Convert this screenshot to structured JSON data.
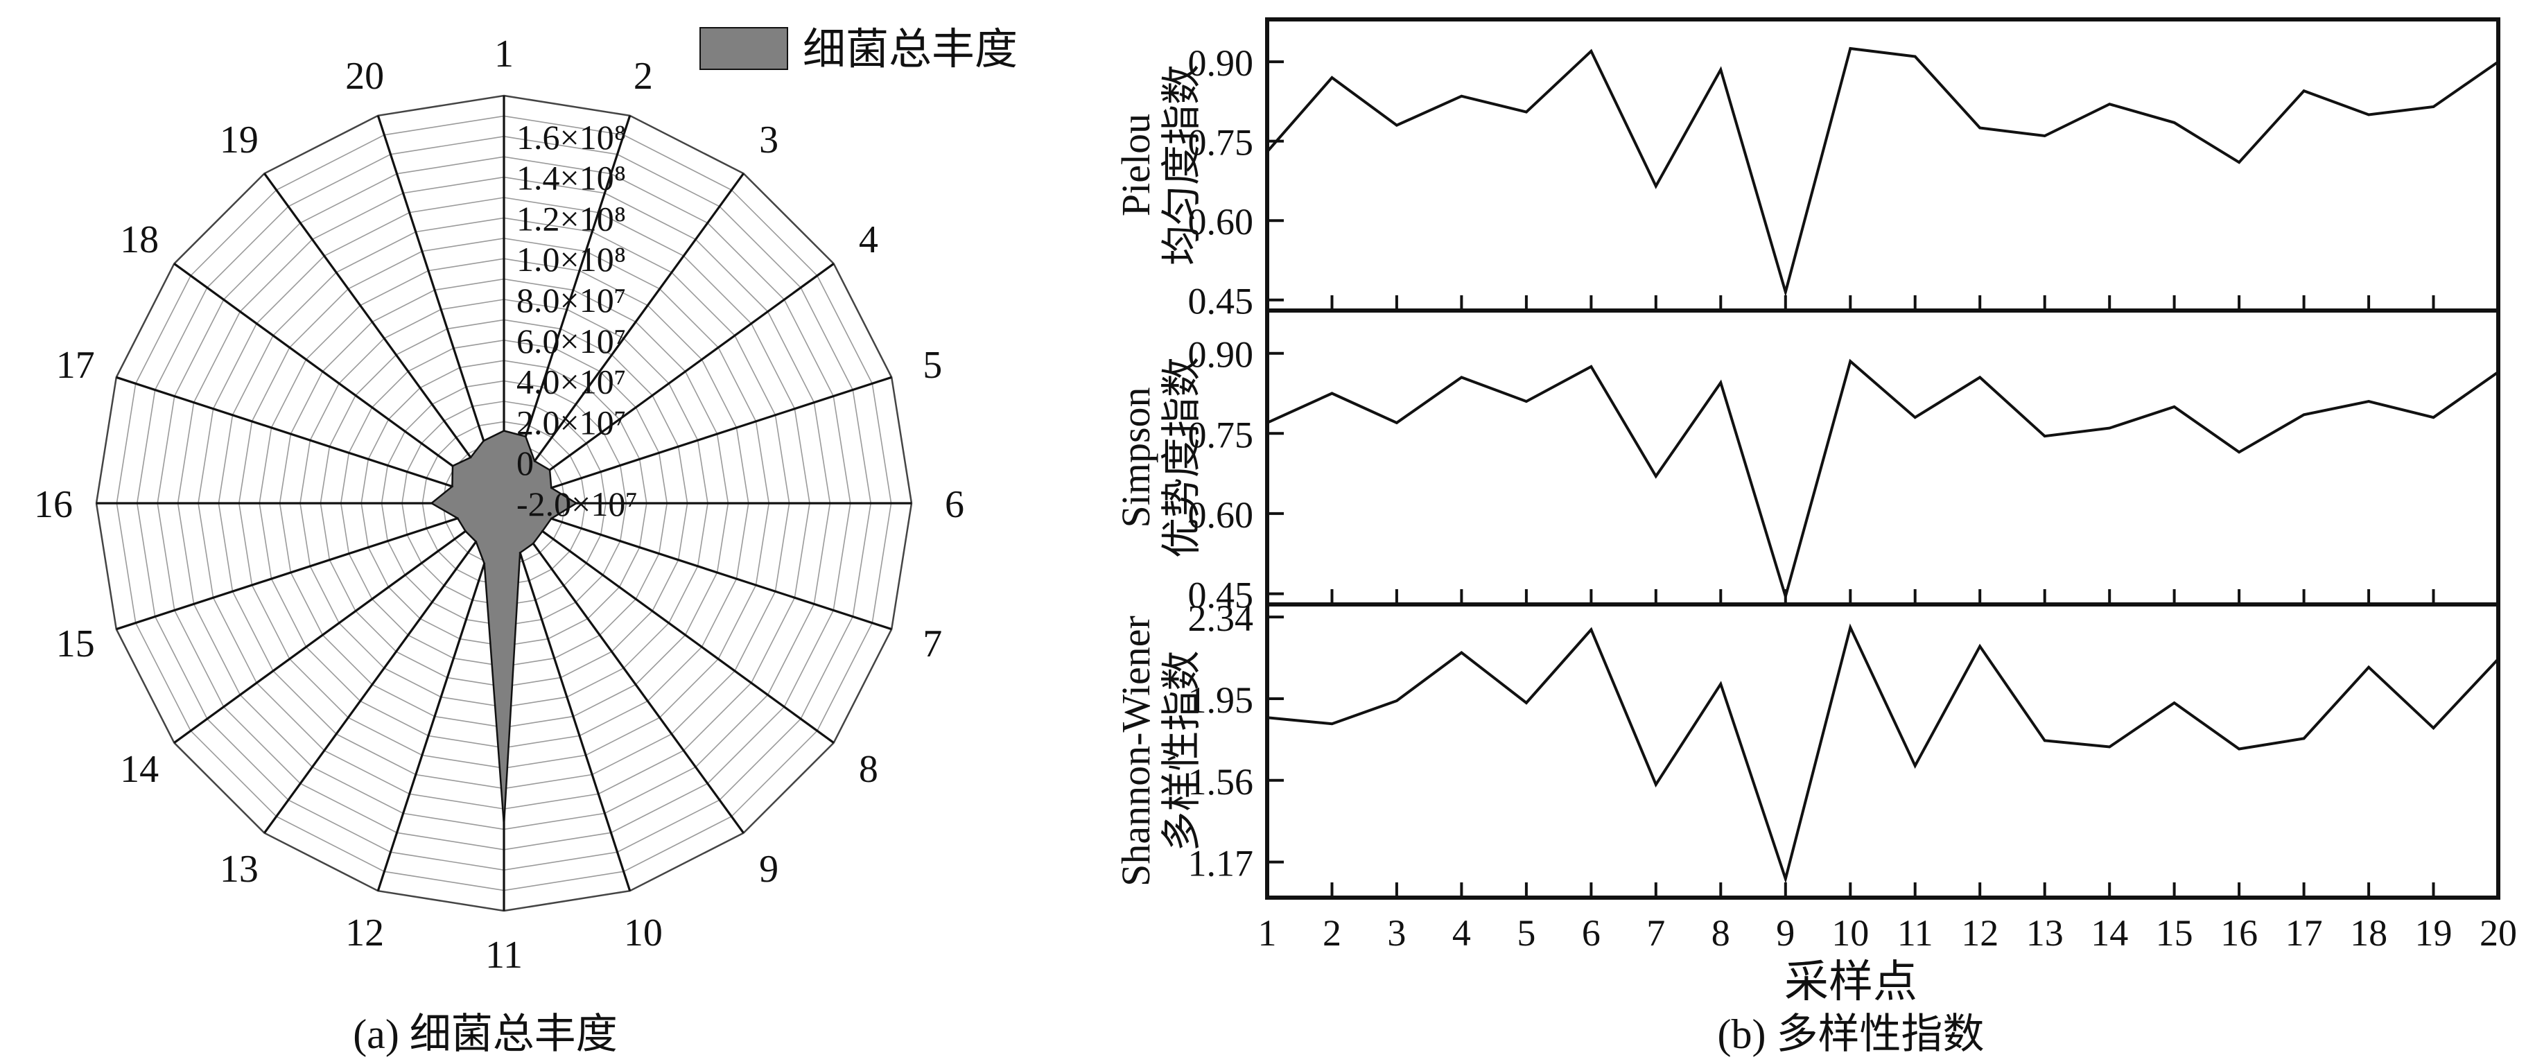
{
  "chart_data": [
    {
      "type": "radar",
      "panel": "(a)",
      "caption": "(a) 细菌总丰度",
      "legend": {
        "label": "细菌总丰度",
        "placement": "top-right",
        "color": "#808080"
      },
      "categories": [
        "1",
        "2",
        "3",
        "4",
        "5",
        "6",
        "7",
        "8",
        "9",
        "10",
        "11",
        "12",
        "13",
        "14",
        "15",
        "16",
        "17",
        "18",
        "19",
        "20"
      ],
      "radial_ticks": [
        "-2.0×10⁷",
        "0",
        "2.0×10⁷",
        "4.0×10⁷",
        "6.0×10⁷",
        "8.0×10⁷",
        "1.0×10⁸",
        "1.2×10⁸",
        "1.4×10⁸",
        "1.6×10⁸"
      ],
      "rlim": [
        -20000000,
        160000000
      ],
      "grid": true,
      "series": [
        {
          "name": "细菌总丰度",
          "values": [
            12000000,
            11000000,
            3000000,
            5000000,
            2000000,
            12000000,
            2000000,
            1000000,
            2000000,
            3000000,
            122000000,
            8000000,
            1000000,
            1000000,
            1500000,
            12000000,
            4000000,
            8000000,
            5000000,
            9000000
          ]
        }
      ]
    },
    {
      "type": "line",
      "panel": "(b)",
      "caption": "(b) 多样性指数",
      "xlabel": "采样点",
      "x": [
        1,
        2,
        3,
        4,
        5,
        6,
        7,
        8,
        9,
        10,
        11,
        12,
        13,
        14,
        15,
        16,
        17,
        18,
        19,
        20
      ],
      "subplots": [
        {
          "ylabel_lines": [
            "Pielou",
            "均匀度指数"
          ],
          "yticks": [
            "0.45",
            "0.60",
            "0.75",
            "0.90"
          ],
          "ylim": [
            0.43,
            0.98
          ],
          "values": [
            0.73,
            0.87,
            0.78,
            0.835,
            0.805,
            0.92,
            0.665,
            0.885,
            0.465,
            0.925,
            0.91,
            0.775,
            0.76,
            0.82,
            0.785,
            0.71,
            0.845,
            0.8,
            0.815,
            0.9
          ]
        },
        {
          "ylabel_lines": [
            "Simpson",
            "优势度指数"
          ],
          "yticks": [
            "0.45",
            "0.60",
            "0.75",
            "0.90"
          ],
          "ylim": [
            0.43,
            0.98
          ],
          "values": [
            0.77,
            0.825,
            0.77,
            0.855,
            0.81,
            0.875,
            0.67,
            0.845,
            0.445,
            0.885,
            0.78,
            0.855,
            0.745,
            0.76,
            0.8,
            0.715,
            0.785,
            0.81,
            0.78,
            0.865
          ]
        },
        {
          "ylabel_lines": [
            "Shannon-Wiener",
            "多样性指数"
          ],
          "yticks": [
            "1.17",
            "1.56",
            "1.95",
            "2.34"
          ],
          "ylim": [
            1.0,
            2.4
          ],
          "values": [
            1.86,
            1.83,
            1.94,
            2.17,
            1.93,
            2.28,
            1.54,
            2.02,
            1.09,
            2.29,
            1.63,
            2.2,
            1.75,
            1.72,
            1.93,
            1.71,
            1.76,
            2.1,
            1.81,
            2.14
          ]
        }
      ]
    }
  ]
}
